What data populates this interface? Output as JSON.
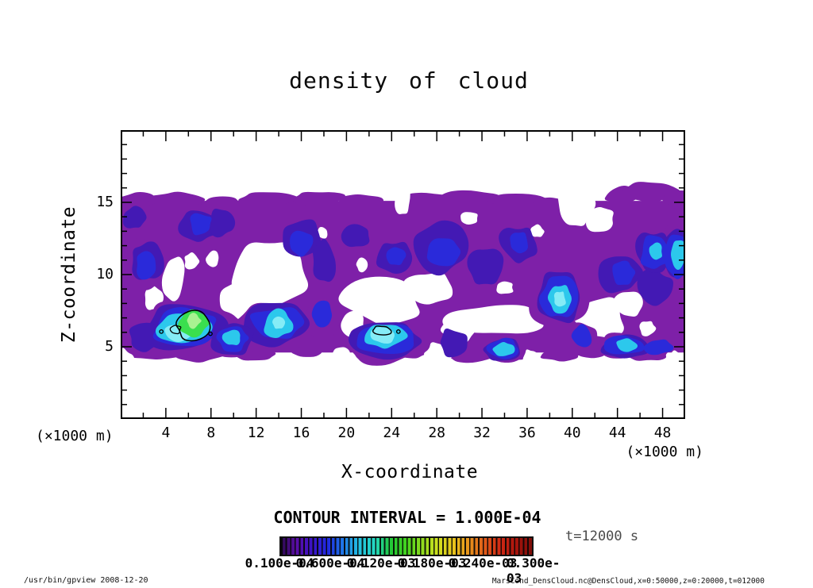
{
  "header": {
    "title": "density of cloud"
  },
  "chart_data": {
    "type": "contour",
    "title": "density of cloud",
    "xlabel": "X-coordinate",
    "ylabel": "Z-coordinate",
    "x_unit_label": "(×1000 m)",
    "y_unit_label": "(×1000 m)",
    "x_range": [
      0,
      50
    ],
    "y_range": [
      0,
      20
    ],
    "x_ticks": [
      4,
      8,
      12,
      16,
      20,
      24,
      28,
      32,
      36,
      40,
      44,
      48
    ],
    "x_minor_step": 2,
    "y_ticks": [
      5,
      10,
      15
    ],
    "y_minor_step": 1,
    "grid": false,
    "contour_interval_label": "CONTOUR INTERVAL = 1.000E-04",
    "time_label": "t=12000 s",
    "colorbar": {
      "tick_labels": [
        "0.100e-04",
        "0.600e-04",
        "0.120e-03",
        "0.180e-03",
        "0.240e-03",
        "0.300e-03"
      ],
      "gradient": [
        "#2d0a50",
        "#5a0da8",
        "#3a13c8",
        "#1f2ae0",
        "#1f7ce8",
        "#23c2e2",
        "#23d8c0",
        "#22c837",
        "#45d41e",
        "#8fdc1e",
        "#cfe01f",
        "#e8c41c",
        "#e8921c",
        "#e05a18",
        "#d02814",
        "#a8140c",
        "#7c0e08"
      ]
    },
    "fill_palette": {
      "level1_purple": "#7e20a8",
      "level2_violet": "#4319b4",
      "level3_blue": "#2a2ada",
      "level4_cyan": "#2cc8ec",
      "level5_pale_cyan": "#85ecf6",
      "level6_green": "#3adf4e",
      "level7_light_green": "#a8f291",
      "contour_line": "#000000"
    },
    "features": [
      "Low-density purple band (~1e-05) spans nearly the whole x-domain between z≈4–15.5 (×1000 m), wavy top edge, many white voids",
      "Large white voids near x≈10–17 z≈8–12, x≈19–30 z≈6–9.5, x≈29–38 z≈6–8, x≈40–45 z≈5.5–8.5 and a bite from the top edge near x≈39–43",
      "Blue/cyan patches (~3–7e-05) at x≈2–9 z≈5–8, x≈9–17 z≈5–9, dome at x≈21–26 z≈4.3–6.8, x≈37–41 z≈6.5–10, x≈44–50 z≈4.5–13",
      "Maximum: green blob near x≈5–8, z≈6–7.5 enclosed by the 1.000E-04 black contour",
      "Secondary 1.000E-04 black contour on top of the dome near x≈23, z≈6"
    ]
  },
  "footer": {
    "left": "/usr/bin/gpview   2008-12-20",
    "right": "MarsCond_DensCloud.nc@DensCloud,x=0:50000,z=0:20000,t=012000"
  }
}
